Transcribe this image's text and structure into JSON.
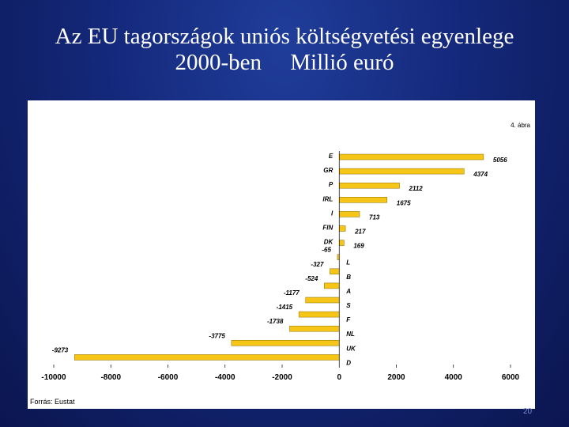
{
  "slide": {
    "title_line1": "Az EU tagországok uniós költségvetési egyenlege",
    "title_line2": "2000-ben     Millió euró",
    "page_number": "20"
  },
  "figure": {
    "corner_note": "4. ábra",
    "source": "Forrás: Eustat"
  },
  "colors": {
    "bar_fill": "#f5c518",
    "bar_stroke": "#8a6d00"
  },
  "chart_data": {
    "type": "bar",
    "orientation": "horizontal",
    "categories": [
      "E",
      "GR",
      "P",
      "IRL",
      "I",
      "FIN",
      "DK",
      "L",
      "B",
      "A",
      "S",
      "F",
      "NL",
      "UK",
      "D"
    ],
    "values": [
      5056,
      4374,
      2112,
      1675,
      713,
      217,
      169,
      -65,
      -327,
      -524,
      -1177,
      -1415,
      -1738,
      -3775,
      -9273
    ],
    "value_labels": [
      "5056",
      "4374",
      "2112",
      "1675",
      "713",
      "217",
      "169",
      "-65",
      "-327",
      "-524",
      "-1177",
      "-1415",
      "-1738",
      "-3775",
      "-9273"
    ],
    "xlim": [
      -10000,
      6000
    ],
    "xticks": [
      -10000,
      -8000,
      -6000,
      -4000,
      -2000,
      0,
      2000,
      4000,
      6000
    ],
    "xtick_labels": [
      "-10000",
      "-8000",
      "-6000",
      "-4000",
      "-2000",
      "0",
      "2000",
      "4000",
      "6000"
    ],
    "grid": false,
    "legend": "none"
  }
}
